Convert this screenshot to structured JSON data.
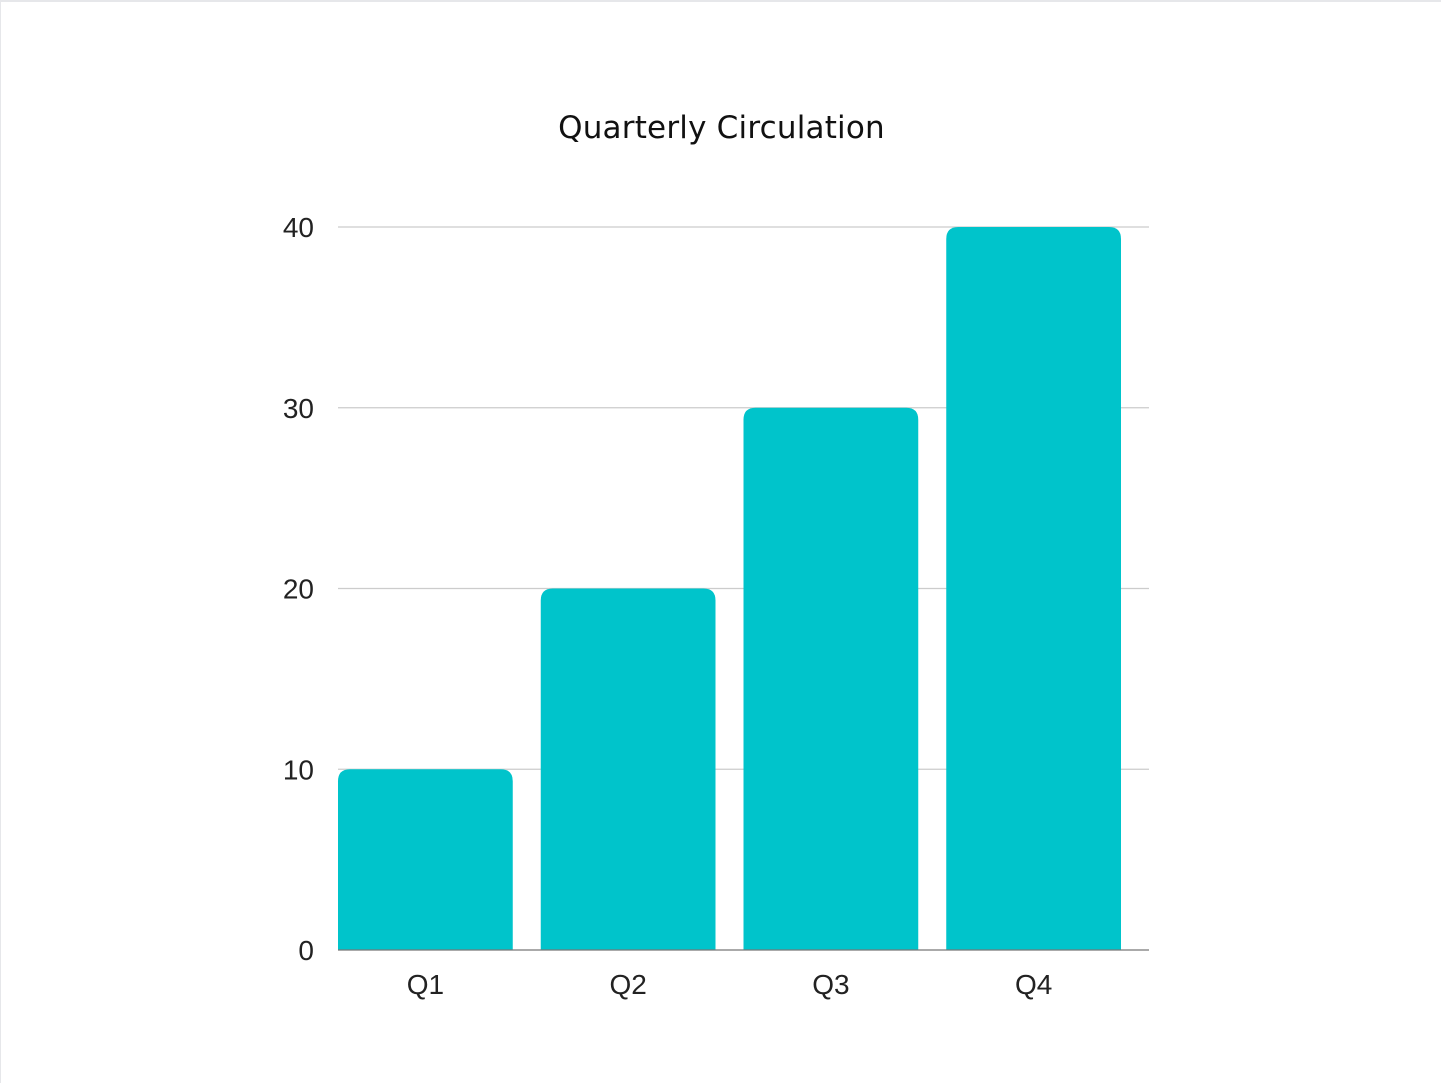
{
  "chart_data": {
    "type": "bar",
    "title": "Quarterly Circulation",
    "xlabel": "",
    "ylabel": "",
    "categories": [
      "Q1",
      "Q2",
      "Q3",
      "Q4"
    ],
    "values": [
      10,
      20,
      30,
      40
    ],
    "ylim": [
      0,
      40
    ],
    "yticks": [
      "0",
      "10",
      "20",
      "30",
      "40"
    ],
    "grid": true,
    "legend": "none",
    "bar_color": "#00c4cb",
    "grid_color": "#cccccc",
    "axis_color": "#777777"
  }
}
